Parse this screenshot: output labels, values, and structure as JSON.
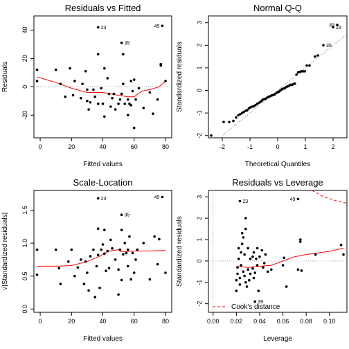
{
  "chart_data": [
    {
      "type": "scatter",
      "title": "Residuals vs Fitted",
      "xlabel": "Fitted values",
      "ylabel": "Residuals",
      "xlim": [
        -4,
        84
      ],
      "ylim": [
        -36,
        50
      ],
      "xticks": [
        0,
        20,
        40,
        60,
        80
      ],
      "yticks": [
        -20,
        0,
        20,
        40
      ],
      "ref_line": {
        "y": 0,
        "style": "dotted"
      },
      "points": [
        [
          -2,
          12
        ],
        [
          -2,
          4
        ],
        [
          10,
          12
        ],
        [
          13,
          2
        ],
        [
          16,
          -7
        ],
        [
          19,
          13
        ],
        [
          21,
          -6
        ],
        [
          22,
          4
        ],
        [
          26,
          -8
        ],
        [
          27,
          2
        ],
        [
          29,
          11
        ],
        [
          30,
          -10
        ],
        [
          30,
          -2
        ],
        [
          31,
          -16
        ],
        [
          32,
          -11
        ],
        [
          34,
          -2
        ],
        [
          35,
          -7
        ],
        [
          37,
          -12
        ],
        [
          37,
          23
        ],
        [
          39,
          -1
        ],
        [
          40,
          -12
        ],
        [
          41,
          -21
        ],
        [
          41,
          13
        ],
        [
          43,
          6
        ],
        [
          44,
          -5
        ],
        [
          45,
          -14
        ],
        [
          46,
          -8
        ],
        [
          47,
          -5
        ],
        [
          48,
          -16
        ],
        [
          50,
          -12
        ],
        [
          51,
          -9
        ],
        [
          52,
          -5
        ],
        [
          53,
          2
        ],
        [
          53,
          23
        ],
        [
          54,
          -12
        ],
        [
          56,
          -9
        ],
        [
          56,
          -20
        ],
        [
          57,
          -12
        ],
        [
          58,
          -13
        ],
        [
          58,
          4
        ],
        [
          59,
          -3
        ],
        [
          60,
          -29
        ],
        [
          60,
          5
        ],
        [
          61,
          -9
        ],
        [
          63,
          -1
        ],
        [
          66,
          -15
        ],
        [
          70,
          -4
        ],
        [
          72,
          -19
        ],
        [
          75,
          -9
        ],
        [
          77,
          16
        ],
        [
          77,
          15
        ],
        [
          80,
          4
        ],
        [
          37,
          42
        ],
        [
          52,
          31
        ],
        [
          78,
          43
        ]
      ],
      "labeled_points": [
        {
          "label": "23",
          "x": 37,
          "y": 42
        },
        {
          "label": "35",
          "x": 52,
          "y": 31
        },
        {
          "label": "49",
          "x": 78,
          "y": 43
        }
      ],
      "smooth": [
        [
          -2,
          7
        ],
        [
          10,
          3
        ],
        [
          20,
          -1
        ],
        [
          30,
          -4
        ],
        [
          40,
          -4
        ],
        [
          50,
          -6
        ],
        [
          56,
          -7
        ],
        [
          60,
          -7
        ],
        [
          65,
          -3
        ],
        [
          70,
          -2
        ],
        [
          76,
          0
        ],
        [
          80,
          4
        ]
      ]
    },
    {
      "type": "scatter",
      "title": "Normal Q-Q",
      "xlabel": "Theoretical Quantiles",
      "ylabel": "Standardized residuals",
      "xlim": [
        -2.5,
        2.5
      ],
      "ylim": [
        -2.1,
        3.3
      ],
      "xticks": [
        -2,
        -1,
        0,
        1,
        2
      ],
      "yticks": [
        -2,
        -1,
        0,
        1,
        2,
        3
      ],
      "ref_line": {
        "type": "diagonal",
        "slope": 1,
        "intercept": 0,
        "style": "dotted"
      },
      "points": [
        [
          -2.4,
          -2.0
        ],
        [
          -1.95,
          -1.4
        ],
        [
          -1.75,
          -1.4
        ],
        [
          -1.6,
          -1.35
        ],
        [
          -1.5,
          -1.2
        ],
        [
          -1.42,
          -1.1
        ],
        [
          -1.35,
          -1.05
        ],
        [
          -1.28,
          -1.0
        ],
        [
          -1.22,
          -0.95
        ],
        [
          -1.15,
          -0.9
        ],
        [
          -1.1,
          -0.88
        ],
        [
          -1.04,
          -0.8
        ],
        [
          -0.98,
          -0.75
        ],
        [
          -0.92,
          -0.72
        ],
        [
          -0.86,
          -0.7
        ],
        [
          -0.8,
          -0.65
        ],
        [
          -0.74,
          -0.6
        ],
        [
          -0.68,
          -0.55
        ],
        [
          -0.62,
          -0.5
        ],
        [
          -0.57,
          -0.45
        ],
        [
          -0.52,
          -0.4
        ],
        [
          -0.46,
          -0.38
        ],
        [
          -0.41,
          -0.35
        ],
        [
          -0.36,
          -0.3
        ],
        [
          -0.31,
          -0.28
        ],
        [
          -0.26,
          -0.25
        ],
        [
          -0.21,
          -0.22
        ],
        [
          -0.16,
          -0.2
        ],
        [
          -0.11,
          -0.18
        ],
        [
          -0.05,
          -0.12
        ],
        [
          0,
          -0.08
        ],
        [
          0.05,
          -0.05
        ],
        [
          0.1,
          0.0
        ],
        [
          0.15,
          0.05
        ],
        [
          0.21,
          0.08
        ],
        [
          0.26,
          0.1
        ],
        [
          0.31,
          0.15
        ],
        [
          0.36,
          0.18
        ],
        [
          0.41,
          0.2
        ],
        [
          0.46,
          0.25
        ],
        [
          0.52,
          0.25
        ],
        [
          0.57,
          0.28
        ],
        [
          0.62,
          0.3
        ],
        [
          0.68,
          0.7
        ],
        [
          0.74,
          0.8
        ],
        [
          0.8,
          0.82
        ],
        [
          0.86,
          0.85
        ],
        [
          0.92,
          0.85
        ],
        [
          0.98,
          0.85
        ],
        [
          1.05,
          1.1
        ],
        [
          1.15,
          1.1
        ],
        [
          1.35,
          1.5
        ],
        [
          1.45,
          1.55
        ],
        [
          1.65,
          2.0
        ],
        [
          2.0,
          2.8
        ],
        [
          2.15,
          2.9
        ]
      ],
      "labeled_points": [
        {
          "label": "23",
          "x": 2.0,
          "y": 2.8
        },
        {
          "label": "35",
          "x": 1.65,
          "y": 2.0
        },
        {
          "label": "49",
          "x": 2.15,
          "y": 2.9
        }
      ]
    },
    {
      "type": "scatter",
      "title": "Scale-Location",
      "xlabel": "Fitted values",
      "ylabel": "√|Standardized residuals|",
      "xlim": [
        -4,
        84
      ],
      "ylim": [
        -0.05,
        1.8
      ],
      "xticks": [
        0,
        20,
        40,
        60,
        80
      ],
      "yticks": [
        0.0,
        0.5,
        1.0,
        1.5
      ],
      "points": [
        [
          -2,
          0.9
        ],
        [
          -2,
          0.52
        ],
        [
          10,
          0.9
        ],
        [
          12,
          0.62
        ],
        [
          13,
          0.38
        ],
        [
          18,
          0.72
        ],
        [
          20,
          0.9
        ],
        [
          22,
          0.5
        ],
        [
          24,
          0.63
        ],
        [
          26,
          0.75
        ],
        [
          28,
          0.38
        ],
        [
          29,
          0.72
        ],
        [
          30,
          0.55
        ],
        [
          31,
          0.28
        ],
        [
          32,
          0.8
        ],
        [
          34,
          0.9
        ],
        [
          35,
          0.18
        ],
        [
          36,
          0.65
        ],
        [
          37,
          0.82
        ],
        [
          37,
          1.22
        ],
        [
          38,
          0.32
        ],
        [
          39,
          0.9
        ],
        [
          40,
          0.98
        ],
        [
          41,
          1.2
        ],
        [
          41,
          0.84
        ],
        [
          42,
          0.58
        ],
        [
          43,
          0.88
        ],
        [
          44,
          0.62
        ],
        [
          45,
          1.05
        ],
        [
          46,
          0.92
        ],
        [
          48,
          0.75
        ],
        [
          50,
          0.6
        ],
        [
          50,
          0.22
        ],
        [
          51,
          0.9
        ],
        [
          52,
          1.2
        ],
        [
          52,
          0.44
        ],
        [
          53,
          0.83
        ],
        [
          54,
          1.0
        ],
        [
          55,
          0.85
        ],
        [
          56,
          0.65
        ],
        [
          56,
          0.9
        ],
        [
          57,
          1.1
        ],
        [
          58,
          0.45
        ],
        [
          59,
          0.85
        ],
        [
          60,
          0.55
        ],
        [
          61,
          0.75
        ],
        [
          62,
          0.9
        ],
        [
          66,
          1.0
        ],
        [
          70,
          0.45
        ],
        [
          73,
          1.1
        ],
        [
          75,
          0.68
        ],
        [
          76,
          1.06
        ],
        [
          80,
          0.55
        ],
        [
          37,
          1.68
        ],
        [
          52,
          1.43
        ],
        [
          78,
          1.7
        ]
      ],
      "labeled_points": [
        {
          "label": "23",
          "x": 37,
          "y": 1.68
        },
        {
          "label": "35",
          "x": 52,
          "y": 1.43
        },
        {
          "label": "49",
          "x": 78,
          "y": 1.7
        }
      ],
      "smooth": [
        [
          -2,
          0.65
        ],
        [
          10,
          0.65
        ],
        [
          20,
          0.66
        ],
        [
          30,
          0.72
        ],
        [
          38,
          0.8
        ],
        [
          44,
          0.88
        ],
        [
          50,
          0.9
        ],
        [
          52,
          0.87
        ],
        [
          60,
          0.88
        ],
        [
          70,
          0.88
        ],
        [
          80,
          0.89
        ]
      ]
    },
    {
      "type": "scatter",
      "title": "Residuals vs Leverage",
      "xlabel": "Leverage",
      "ylabel": "Standardized residuals",
      "xlim": [
        -0.004,
        0.115
      ],
      "ylim": [
        -2.4,
        3.3
      ],
      "xticks": [
        0.0,
        0.02,
        0.04,
        0.06,
        0.08,
        0.1
      ],
      "yticks": [
        -2,
        -1,
        0,
        1,
        2,
        3
      ],
      "legend": {
        "label": "Cook's distance",
        "placement": "bottom-left",
        "style": "dashed red"
      },
      "points": [
        [
          0.02,
          -1.4
        ],
        [
          0.02,
          -0.9
        ],
        [
          0.021,
          -0.6
        ],
        [
          0.021,
          -0.3
        ],
        [
          0.022,
          0.1
        ],
        [
          0.022,
          0.6
        ],
        [
          0.023,
          -1.1
        ],
        [
          0.023,
          -0.8
        ],
        [
          0.024,
          0.4
        ],
        [
          0.024,
          -0.2
        ],
        [
          0.025,
          0.8
        ],
        [
          0.025,
          1.3
        ],
        [
          0.026,
          -0.5
        ],
        [
          0.026,
          1.1
        ],
        [
          0.027,
          -0.7
        ],
        [
          0.027,
          0.3
        ],
        [
          0.028,
          1.5
        ],
        [
          0.028,
          -1.0
        ],
        [
          0.029,
          -1.2
        ],
        [
          0.03,
          -0.4
        ],
        [
          0.03,
          0.6
        ],
        [
          0.031,
          -0.9
        ],
        [
          0.032,
          0.1
        ],
        [
          0.032,
          -0.6
        ],
        [
          0.034,
          0.2
        ],
        [
          0.034,
          -0.35
        ],
        [
          0.035,
          -0.8
        ],
        [
          0.035,
          0.4
        ],
        [
          0.036,
          -0.55
        ],
        [
          0.037,
          0.1
        ],
        [
          0.038,
          0.6
        ],
        [
          0.038,
          -0.2
        ],
        [
          0.039,
          -1.4
        ],
        [
          0.04,
          0.2
        ],
        [
          0.042,
          0.5
        ],
        [
          0.043,
          -0.3
        ],
        [
          0.044,
          -0.1
        ],
        [
          0.045,
          0.3
        ],
        [
          0.047,
          -0.5
        ],
        [
          0.05,
          -0.4
        ],
        [
          0.06,
          -0.2
        ],
        [
          0.061,
          0.15
        ],
        [
          0.063,
          -1.2
        ],
        [
          0.073,
          -0.4
        ],
        [
          0.075,
          0.9
        ],
        [
          0.075,
          1.0
        ],
        [
          0.076,
          -0.45
        ],
        [
          0.088,
          0.3
        ],
        [
          0.11,
          0.75
        ],
        [
          0.112,
          0.3
        ],
        [
          0.023,
          2.8
        ],
        [
          0.028,
          2.0
        ],
        [
          0.073,
          2.9
        ],
        [
          0.036,
          -1.9
        ]
      ],
      "labeled_points": [
        {
          "label": "23",
          "x": 0.023,
          "y": 2.8
        },
        {
          "label": "49",
          "x": 0.073,
          "y": 2.9
        },
        {
          "label": "39",
          "x": 0.036,
          "y": -1.9
        }
      ],
      "smooth": [
        [
          0.02,
          -0.25
        ],
        [
          0.03,
          -0.3
        ],
        [
          0.04,
          -0.25
        ],
        [
          0.05,
          -0.2
        ],
        [
          0.06,
          0.0
        ],
        [
          0.07,
          0.2
        ],
        [
          0.08,
          0.3
        ],
        [
          0.1,
          0.45
        ],
        [
          0.112,
          0.6
        ]
      ],
      "cooks_curve": [
        [
          0.085,
          3.3
        ],
        [
          0.09,
          3.15
        ],
        [
          0.095,
          3.0
        ],
        [
          0.1,
          2.92
        ],
        [
          0.105,
          2.82
        ],
        [
          0.11,
          2.76
        ],
        [
          0.115,
          2.7
        ]
      ]
    }
  ]
}
